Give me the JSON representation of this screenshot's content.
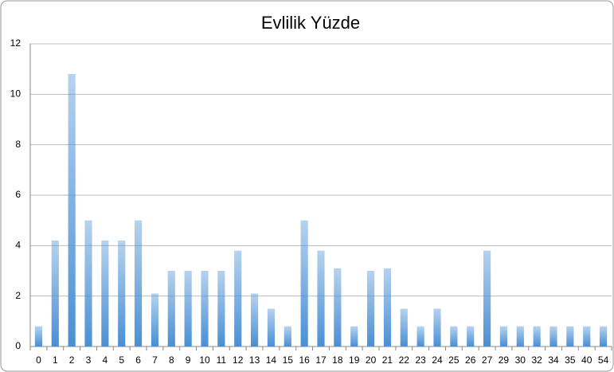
{
  "chart_data": {
    "type": "bar",
    "title": "Evlilik Yüzde",
    "categories": [
      "0",
      "1",
      "2",
      "3",
      "4",
      "5",
      "6",
      "7",
      "8",
      "9",
      "10",
      "11",
      "12",
      "13",
      "14",
      "15",
      "16",
      "17",
      "18",
      "19",
      "20",
      "21",
      "22",
      "23",
      "24",
      "25",
      "26",
      "27",
      "29",
      "30",
      "32",
      "34",
      "35",
      "40",
      "54"
    ],
    "values": [
      0.8,
      4.2,
      10.8,
      5,
      4.2,
      4.2,
      5,
      2.1,
      3,
      3,
      3,
      3,
      3.8,
      2.1,
      1.5,
      0.8,
      5,
      3.8,
      3.1,
      0.8,
      3,
      3.1,
      1.5,
      0.8,
      1.5,
      0.8,
      0.8,
      3.8,
      0.8,
      0.8,
      0.8,
      0.8,
      0.8,
      0.8,
      0.8
    ],
    "color": "#4a8fd4",
    "ylim": [
      0,
      12
    ],
    "yticks": [
      0,
      2,
      4,
      6,
      8,
      10,
      12
    ],
    "grid": true
  }
}
